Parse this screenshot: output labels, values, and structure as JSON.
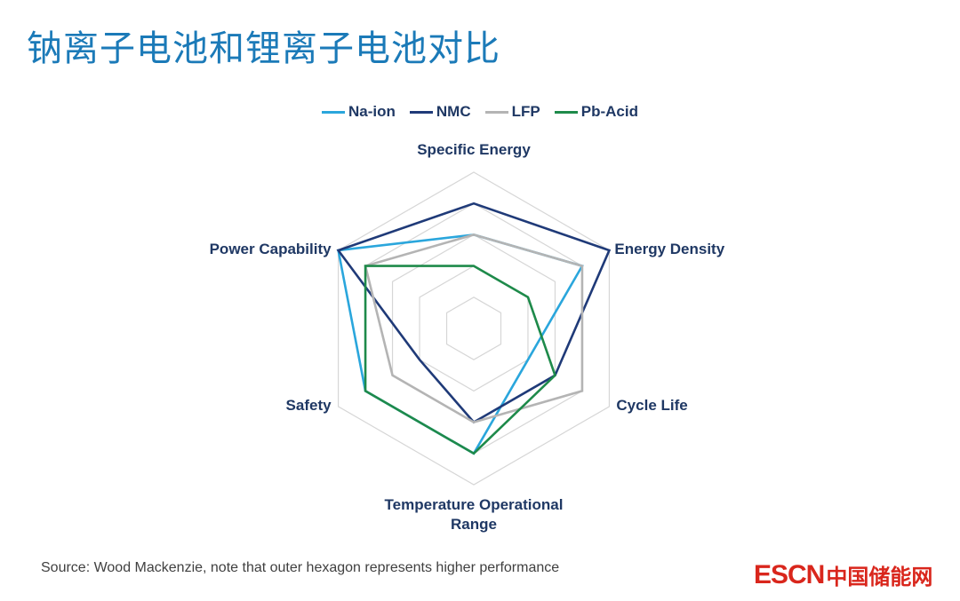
{
  "title": "钠离子电池和锂离子电池对比",
  "source_note": "Source: Wood Mackenzie, note that outer hexagon represents higher performance",
  "brand": {
    "en": "ESCN",
    "cn": "中国储能网"
  },
  "colors": {
    "Na-ion": "#2aa6dc",
    "NMC": "#1f3a78",
    "LFP": "#b4b4b4",
    "Pb-Acid": "#1e8a4a",
    "grid": "#d6d6d6",
    "title": "#1b7ab8",
    "brand": "#d9261c"
  },
  "chart_data": {
    "type": "radar",
    "title": "",
    "axes": [
      [
        "Specific Energy"
      ],
      [
        "Energy Density"
      ],
      [
        "Cycle Life"
      ],
      [
        "Temperature Operational",
        "Range"
      ],
      [
        "Safety"
      ],
      [
        "Power Capability"
      ]
    ],
    "range": [
      0,
      5
    ],
    "grid_levels": 5,
    "grid": true,
    "legend_position": "top-center",
    "series": [
      {
        "name": "Na-ion",
        "values": [
          3,
          4,
          2,
          4,
          4,
          5
        ]
      },
      {
        "name": "NMC",
        "values": [
          4,
          5,
          3,
          3,
          2,
          5
        ]
      },
      {
        "name": "LFP",
        "values": [
          3,
          4,
          4,
          3,
          3,
          4
        ]
      },
      {
        "name": "Pb-Acid",
        "values": [
          2,
          2,
          3,
          4,
          4,
          4
        ]
      }
    ]
  }
}
